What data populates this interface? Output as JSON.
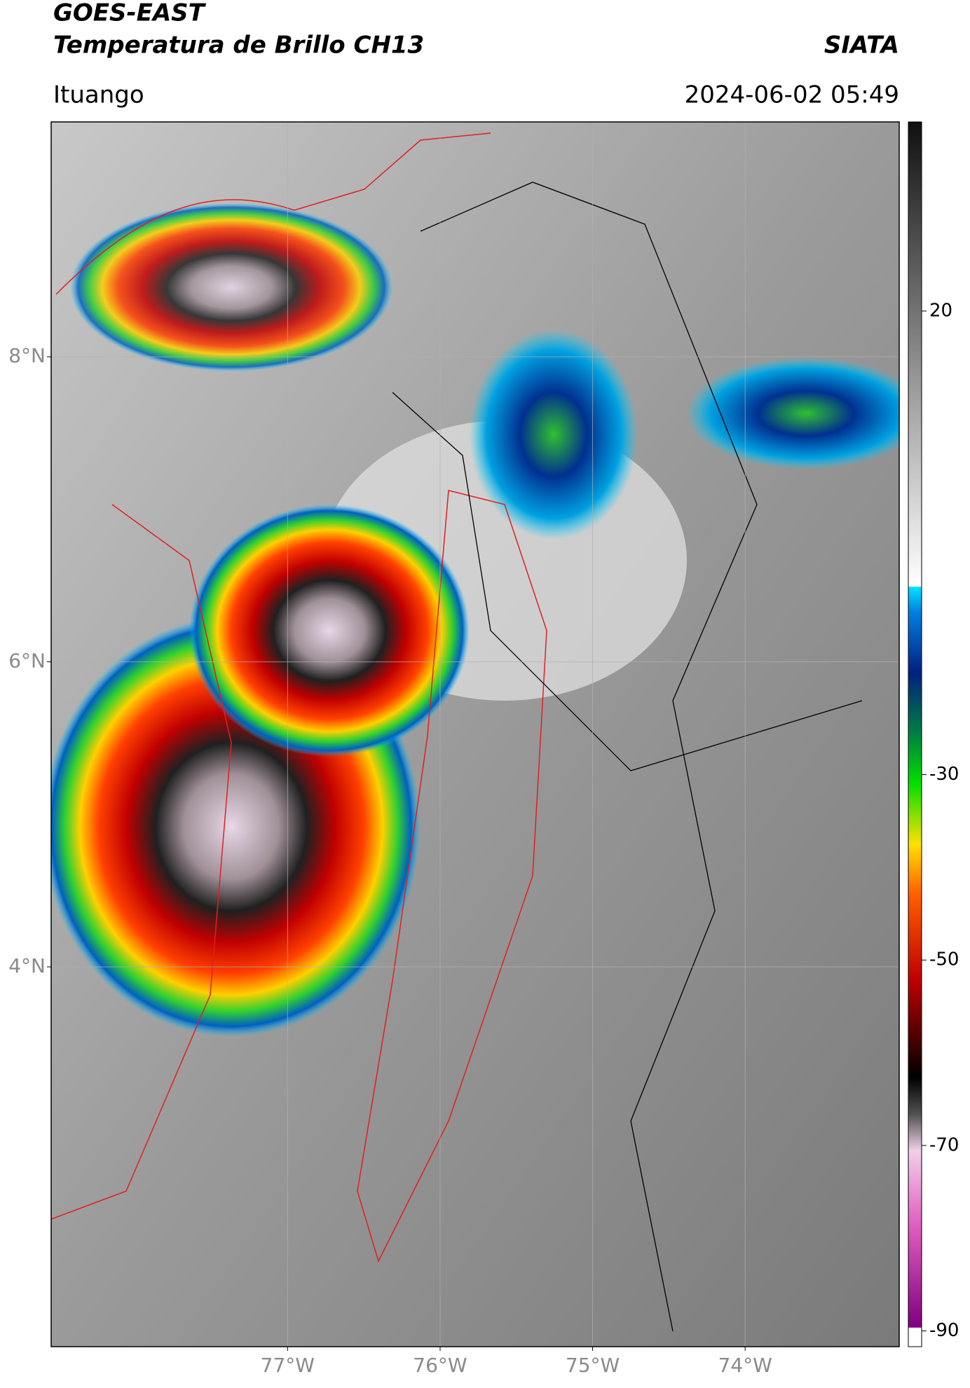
{
  "header": {
    "title": "GOES-EAST",
    "subtitle": "Temperatura de Brillo CH13",
    "agency": "SIATA",
    "location": "Ituango",
    "datetime": "2024-06-02 05:49"
  },
  "map": {
    "xlim": [
      -78.55,
      -72.99
    ],
    "ylim": [
      1.51,
      9.54
    ],
    "xticks": [
      {
        "value": -77,
        "label": "77°W"
      },
      {
        "value": -76,
        "label": "76°W"
      },
      {
        "value": -75,
        "label": "75°W"
      },
      {
        "value": -74,
        "label": "74°W"
      }
    ],
    "yticks": [
      {
        "value": 8,
        "label": "8°N"
      },
      {
        "value": 6,
        "label": "6°N"
      },
      {
        "value": 4,
        "label": "4°N"
      }
    ],
    "grid": true
  },
  "colorbar": {
    "lim": [
      -91.7,
      40.4
    ],
    "ticks": [
      20,
      -30,
      -50,
      -70,
      -90
    ]
  }
}
